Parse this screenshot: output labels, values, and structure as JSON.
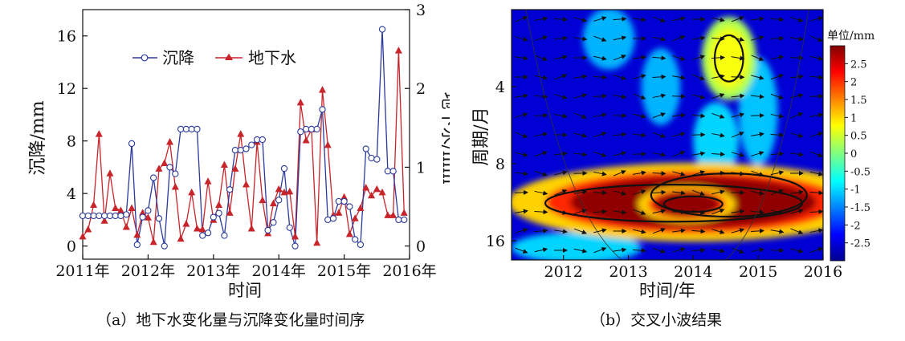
{
  "panel_a": {
    "caption": "（a）地下水变化量与沉降变化量时间序",
    "xlabel": "时间",
    "ylabel_left": "沉降/mm",
    "ylabel_right": "地下水/mm",
    "x_ticks": [
      "2011年",
      "2012年",
      "2013年",
      "2014年",
      "2015年",
      "2016年"
    ],
    "y_left_ticks": [
      "0",
      "4",
      "8",
      "12",
      "16"
    ],
    "y_right_ticks": [
      "0",
      "1",
      "2",
      "3"
    ],
    "legend_settlement": "沉降",
    "legend_groundwater": "地下水"
  },
  "panel_b": {
    "caption": "（b）交叉小波结果",
    "xlabel": "时间/年",
    "ylabel": "周期/月",
    "x_ticks": [
      "2012",
      "2013",
      "2014",
      "2015",
      "2016"
    ],
    "y_ticks": [
      "4",
      "8",
      "16"
    ],
    "colorbar_title": "单位/mm",
    "colorbar_ticks": [
      "2.5",
      "2",
      "1.5",
      "1",
      "0.5",
      "0",
      "-0.5",
      "-1",
      "-1.5",
      "-2",
      "-2.5"
    ]
  },
  "colors": {
    "settlement": "#2b3a9c",
    "groundwater": "#c8252b"
  },
  "chart_data": [
    {
      "type": "line",
      "x_unit": "year",
      "xlim": [
        2011,
        2016
      ],
      "ylim_left": [
        -1,
        18
      ],
      "ylim_right": [
        -0.1666667,
        3
      ],
      "grid": false,
      "legend_position": "top-left",
      "series": [
        {
          "name": "沉降",
          "axis": "left",
          "marker": "open-circle",
          "x": [
            2011.0,
            2011.083,
            2011.167,
            2011.25,
            2011.333,
            2011.417,
            2011.5,
            2011.583,
            2011.667,
            2011.75,
            2011.833,
            2011.917,
            2012.0,
            2012.083,
            2012.167,
            2012.25,
            2012.333,
            2012.417,
            2012.5,
            2012.583,
            2012.667,
            2012.75,
            2012.833,
            2012.917,
            2013.0,
            2013.083,
            2013.167,
            2013.25,
            2013.333,
            2013.417,
            2013.5,
            2013.583,
            2013.667,
            2013.75,
            2013.833,
            2013.917,
            2014.0,
            2014.083,
            2014.167,
            2014.25,
            2014.333,
            2014.417,
            2014.5,
            2014.583,
            2014.667,
            2014.75,
            2014.833,
            2014.917,
            2015.0,
            2015.083,
            2015.167,
            2015.25,
            2015.333,
            2015.417,
            2015.5,
            2015.583,
            2015.667,
            2015.75,
            2015.833,
            2015.917
          ],
          "y": [
            2.3,
            2.3,
            2.3,
            2.3,
            2.3,
            2.3,
            2.3,
            2.3,
            2.4,
            7.8,
            0.1,
            2.2,
            2.7,
            5.2,
            2.1,
            0.0,
            6.0,
            5.5,
            8.9,
            8.9,
            8.9,
            8.9,
            0.8,
            1.0,
            2.2,
            2.5,
            0.8,
            4.3,
            7.3,
            7.3,
            7.4,
            7.7,
            8.1,
            8.1,
            1.2,
            1.8,
            3.5,
            5.9,
            1.4,
            0.0,
            8.7,
            8.9,
            8.9,
            8.9,
            10.4,
            2.0,
            2.1,
            3.4,
            3.4,
            3.0,
            0.5,
            0.1,
            7.4,
            6.7,
            6.6,
            16.5,
            5.7,
            5.7,
            2.0,
            2.0
          ]
        },
        {
          "name": "地下水",
          "axis": "right",
          "marker": "filled-triangle",
          "x": [
            2011.0,
            2011.083,
            2011.167,
            2011.25,
            2011.333,
            2011.417,
            2011.5,
            2011.583,
            2011.667,
            2011.75,
            2011.833,
            2011.917,
            2012.0,
            2012.083,
            2012.167,
            2012.25,
            2012.333,
            2012.417,
            2012.5,
            2012.583,
            2012.667,
            2012.75,
            2012.833,
            2012.917,
            2013.0,
            2013.083,
            2013.167,
            2013.25,
            2013.333,
            2013.417,
            2013.5,
            2013.583,
            2013.667,
            2013.75,
            2013.833,
            2013.917,
            2014.0,
            2014.083,
            2014.167,
            2014.25,
            2014.333,
            2014.417,
            2014.5,
            2014.583,
            2014.667,
            2014.75,
            2014.833,
            2014.917,
            2015.0,
            2015.083,
            2015.167,
            2015.25,
            2015.333,
            2015.417,
            2015.5,
            2015.583,
            2015.667,
            2015.75,
            2015.833,
            2015.917
          ],
          "y": [
            0.12,
            0.21,
            0.52,
            1.42,
            0.32,
            0.92,
            0.48,
            0.45,
            0.24,
            0.48,
            0.14,
            0.42,
            0.36,
            0.05,
            0.98,
            1.05,
            1.32,
            0.75,
            0.09,
            0.28,
            0.68,
            0.22,
            0.21,
            0.82,
            0.33,
            0.52,
            1.03,
            0.42,
            0.98,
            1.42,
            0.78,
            0.22,
            1.32,
            0.58,
            0.16,
            0.54,
            0.72,
            0.68,
            0.69,
            0.12,
            1.82,
            1.34,
            1.48,
            0.04,
            1.98,
            1.28,
            0.39,
            0.42,
            0.62,
            0.15,
            0.35,
            0.48,
            0.74,
            0.64,
            0.72,
            0.68,
            0.39,
            0.39,
            2.48,
            0.42
          ]
        }
      ]
    },
    {
      "type": "heatmap",
      "title": "",
      "x_unit": "year",
      "y_unit": "month",
      "xlim": [
        2011.2,
        2016.0
      ],
      "ylim": [
        2,
        19
      ],
      "y_scale": "log2",
      "y_reversed": true,
      "colorbar_range": [
        -3,
        3
      ],
      "colormap": "jet",
      "regions": [
        {
          "x_center": 2014.0,
          "y_center": 11.3,
          "x_halfwidth": 1.9,
          "y_halfwidth_octaves": 0.34,
          "value": 2.9
        },
        {
          "x_center": 2013.9,
          "y_center": 11.5,
          "x_halfwidth": 0.5,
          "y_halfwidth_octaves": 0.16,
          "value": 2.9
        },
        {
          "x_center": 2014.55,
          "y_center": 3.1,
          "x_halfwidth": 0.28,
          "y_halfwidth_octaves": 0.36,
          "value": 0.7
        },
        {
          "x_center": 2012.7,
          "y_center": 2.6,
          "x_halfwidth": 0.4,
          "y_halfwidth_octaves": 0.4,
          "value": -1.2
        },
        {
          "x_center": 2013.5,
          "y_center": 4.0,
          "x_halfwidth": 0.3,
          "y_halfwidth_octaves": 0.5,
          "value": -1.2
        },
        {
          "x_center": 2014.35,
          "y_center": 6.5,
          "x_halfwidth": 0.35,
          "y_halfwidth_octaves": 0.5,
          "value": -1.0
        },
        {
          "x_center": 2015.0,
          "y_center": 5.0,
          "x_halfwidth": 0.3,
          "y_halfwidth_octaves": 0.7,
          "value": -1.1
        },
        {
          "x_center": 2012.2,
          "y_center": 17.0,
          "x_halfwidth": 1.0,
          "y_halfwidth_octaves": 0.2,
          "value": -1.0
        }
      ],
      "background_value": -2.5,
      "contours": [
        {
          "x_center": 2013.7,
          "y_center": 11.4,
          "x_halfwidth": 1.98,
          "y_halfwidth_octaves": 0.24
        },
        {
          "x_center": 2014.55,
          "y_center": 10.6,
          "x_halfwidth": 1.2,
          "y_halfwidth_octaves": 0.28
        },
        {
          "x_center": 2014.0,
          "y_center": 11.5,
          "x_halfwidth": 0.45,
          "y_halfwidth_octaves": 0.1
        },
        {
          "x_center": 2014.55,
          "y_center": 3.1,
          "x_halfwidth": 0.22,
          "y_halfwidth_octaves": 0.3
        }
      ],
      "cone_of_influence": true,
      "phase_arrows": "mostly right-pointing (in-phase)"
    }
  ]
}
